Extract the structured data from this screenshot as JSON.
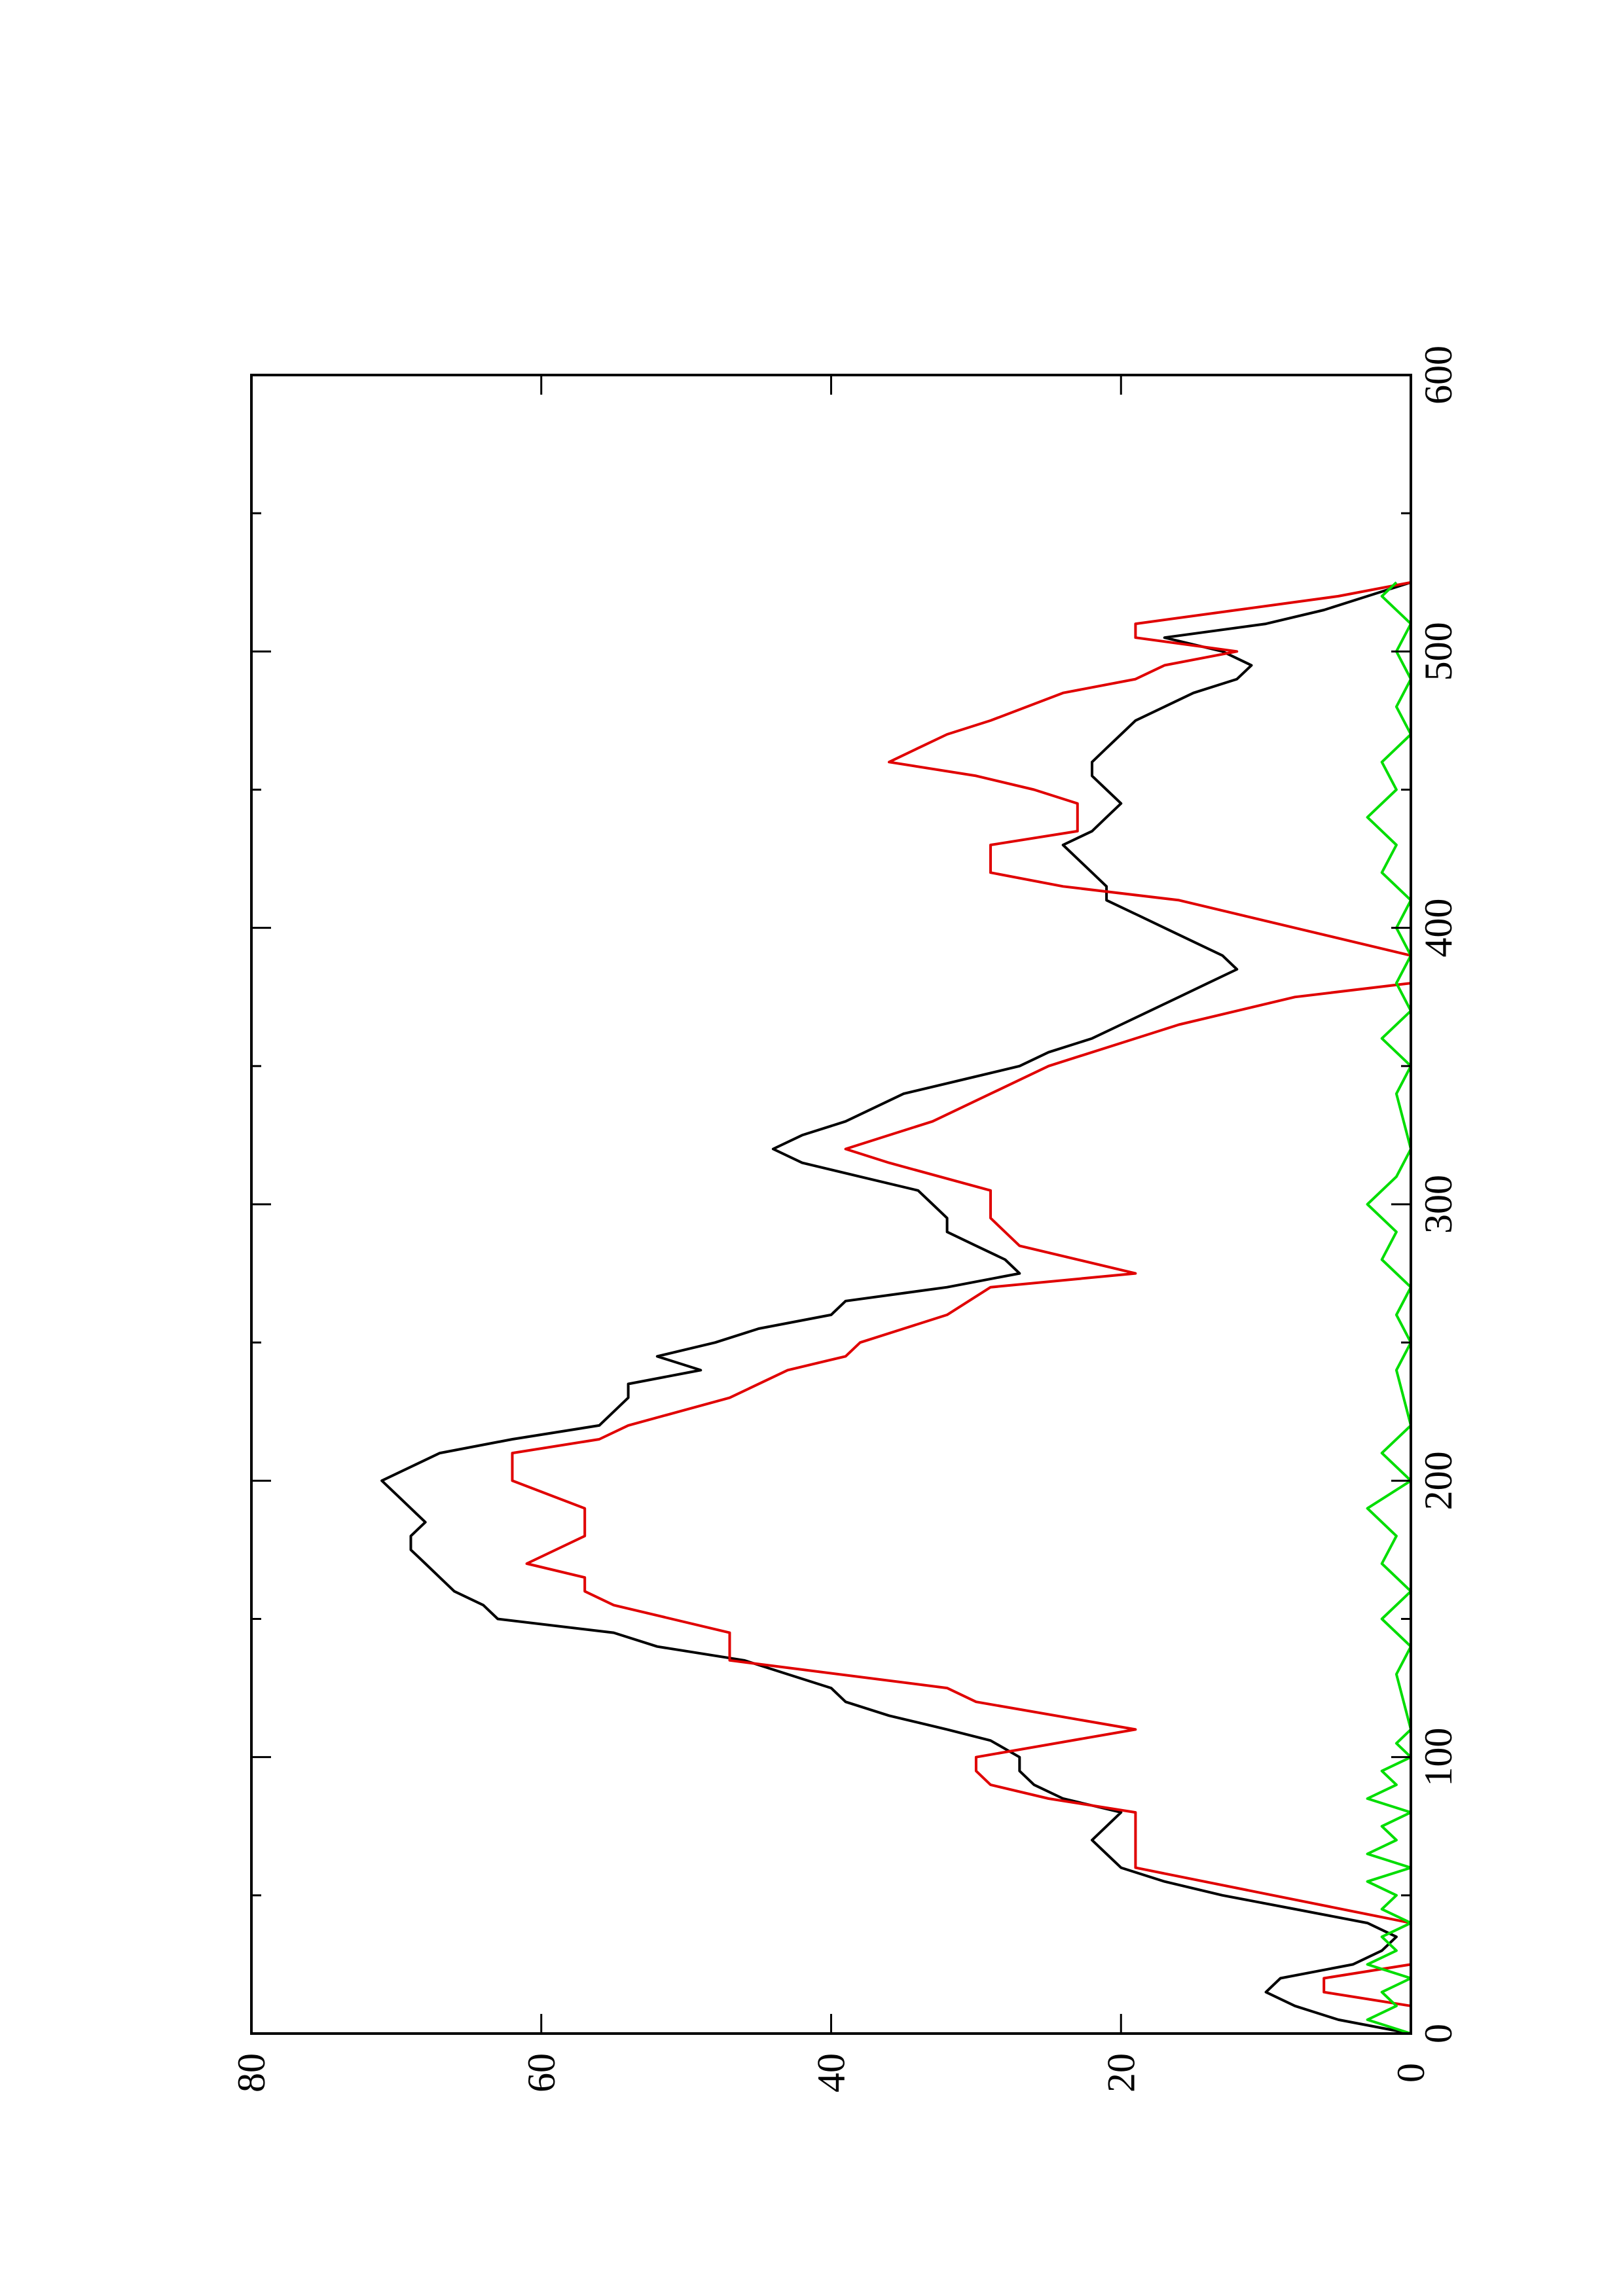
{
  "chart_data": {
    "type": "line",
    "title": "",
    "xlabel": "",
    "ylabel": "",
    "orientation": "rotated 90 degrees counter-clockwise (page is landscape plot printed in portrait)",
    "xlim": [
      0,
      600
    ],
    "ylim": [
      0,
      80
    ],
    "x_ticks": [
      "0",
      "100",
      "200",
      "300",
      "400",
      "500",
      "600"
    ],
    "y_ticks": [
      "0",
      "20",
      "40",
      "60",
      "80"
    ],
    "x_minor_step": 50,
    "grid": false,
    "legend": "none",
    "series": [
      {
        "color": "#000000",
        "points": [
          [
            0,
            0
          ],
          [
            5,
            5
          ],
          [
            10,
            8
          ],
          [
            15,
            10
          ],
          [
            20,
            9
          ],
          [
            25,
            4
          ],
          [
            30,
            2
          ],
          [
            35,
            1
          ],
          [
            40,
            3
          ],
          [
            45,
            8
          ],
          [
            50,
            13
          ],
          [
            55,
            17
          ],
          [
            60,
            20
          ],
          [
            65,
            21
          ],
          [
            70,
            22
          ],
          [
            75,
            21
          ],
          [
            80,
            20
          ],
          [
            85,
            24
          ],
          [
            90,
            26
          ],
          [
            95,
            27
          ],
          [
            100,
            27
          ],
          [
            103,
            28
          ],
          [
            106,
            29
          ],
          [
            110,
            32
          ],
          [
            115,
            36
          ],
          [
            120,
            39
          ],
          [
            125,
            40
          ],
          [
            130,
            43
          ],
          [
            135,
            46
          ],
          [
            140,
            52
          ],
          [
            145,
            55
          ],
          [
            150,
            63
          ],
          [
            155,
            64
          ],
          [
            160,
            66
          ],
          [
            165,
            67
          ],
          [
            170,
            68
          ],
          [
            175,
            69
          ],
          [
            180,
            69
          ],
          [
            185,
            68
          ],
          [
            190,
            69
          ],
          [
            195,
            70
          ],
          [
            200,
            71
          ],
          [
            205,
            69
          ],
          [
            210,
            67
          ],
          [
            215,
            62
          ],
          [
            220,
            56
          ],
          [
            225,
            55
          ],
          [
            230,
            54
          ],
          [
            235,
            54
          ],
          [
            240,
            49
          ],
          [
            245,
            52
          ],
          [
            250,
            48
          ],
          [
            255,
            45
          ],
          [
            260,
            40
          ],
          [
            265,
            39
          ],
          [
            270,
            32
          ],
          [
            275,
            27
          ],
          [
            280,
            28
          ],
          [
            285,
            30
          ],
          [
            290,
            32
          ],
          [
            295,
            32
          ],
          [
            300,
            33
          ],
          [
            305,
            34
          ],
          [
            310,
            38
          ],
          [
            315,
            42
          ],
          [
            320,
            44
          ],
          [
            325,
            42
          ],
          [
            330,
            39
          ],
          [
            335,
            37
          ],
          [
            340,
            35
          ],
          [
            345,
            31
          ],
          [
            350,
            27
          ],
          [
            355,
            25
          ],
          [
            360,
            22
          ],
          [
            365,
            20
          ],
          [
            370,
            18
          ],
          [
            375,
            16
          ],
          [
            380,
            14
          ],
          [
            385,
            12
          ],
          [
            390,
            13
          ],
          [
            395,
            15
          ],
          [
            400,
            17
          ],
          [
            405,
            19
          ],
          [
            410,
            21
          ],
          [
            415,
            21
          ],
          [
            420,
            22
          ],
          [
            425,
            23
          ],
          [
            430,
            24
          ],
          [
            435,
            22
          ],
          [
            440,
            21
          ],
          [
            445,
            20
          ],
          [
            450,
            21
          ],
          [
            455,
            22
          ],
          [
            460,
            22
          ],
          [
            465,
            21
          ],
          [
            470,
            20
          ],
          [
            475,
            19
          ],
          [
            480,
            17
          ],
          [
            485,
            15
          ],
          [
            490,
            12
          ],
          [
            495,
            11
          ],
          [
            500,
            13
          ],
          [
            505,
            17
          ],
          [
            510,
            10
          ],
          [
            515,
            6
          ],
          [
            520,
            3
          ],
          [
            525,
            0
          ]
        ]
      },
      {
        "color": "#e00000",
        "points": [
          [
            0,
            0
          ],
          [
            10,
            0
          ],
          [
            15,
            6
          ],
          [
            20,
            6
          ],
          [
            25,
            0
          ],
          [
            40,
            0
          ],
          [
            60,
            19
          ],
          [
            80,
            19
          ],
          [
            85,
            25
          ],
          [
            90,
            29
          ],
          [
            95,
            30
          ],
          [
            100,
            30
          ],
          [
            110,
            19
          ],
          [
            120,
            30
          ],
          [
            125,
            32
          ],
          [
            135,
            47
          ],
          [
            145,
            47
          ],
          [
            155,
            55
          ],
          [
            160,
            57
          ],
          [
            165,
            57
          ],
          [
            170,
            61
          ],
          [
            180,
            57
          ],
          [
            190,
            57
          ],
          [
            200,
            62
          ],
          [
            210,
            62
          ],
          [
            215,
            56
          ],
          [
            220,
            54
          ],
          [
            230,
            47
          ],
          [
            240,
            43
          ],
          [
            245,
            39
          ],
          [
            250,
            38
          ],
          [
            260,
            32
          ],
          [
            270,
            29
          ],
          [
            275,
            19
          ],
          [
            285,
            27
          ],
          [
            295,
            29
          ],
          [
            305,
            29
          ],
          [
            315,
            36
          ],
          [
            320,
            39
          ],
          [
            325,
            36
          ],
          [
            330,
            33
          ],
          [
            340,
            29
          ],
          [
            350,
            25
          ],
          [
            360,
            19
          ],
          [
            365,
            16
          ],
          [
            370,
            12
          ],
          [
            375,
            8
          ],
          [
            380,
            0
          ],
          [
            390,
            0
          ],
          [
            400,
            8
          ],
          [
            410,
            16
          ],
          [
            415,
            24
          ],
          [
            420,
            29
          ],
          [
            430,
            29
          ],
          [
            435,
            23
          ],
          [
            445,
            23
          ],
          [
            450,
            26
          ],
          [
            455,
            30
          ],
          [
            460,
            36
          ],
          [
            465,
            34
          ],
          [
            470,
            32
          ],
          [
            475,
            29
          ],
          [
            485,
            24
          ],
          [
            490,
            19
          ],
          [
            495,
            17
          ],
          [
            500,
            12
          ],
          [
            505,
            19
          ],
          [
            510,
            19
          ],
          [
            515,
            12
          ],
          [
            520,
            5
          ],
          [
            525,
            0
          ]
        ]
      },
      {
        "color": "#00dd00",
        "points": [
          [
            0,
            0
          ],
          [
            5,
            3
          ],
          [
            10,
            1
          ],
          [
            15,
            2
          ],
          [
            20,
            0
          ],
          [
            25,
            3
          ],
          [
            30,
            1
          ],
          [
            35,
            2
          ],
          [
            40,
            0
          ],
          [
            45,
            2
          ],
          [
            50,
            1
          ],
          [
            55,
            3
          ],
          [
            60,
            0
          ],
          [
            65,
            3
          ],
          [
            70,
            1
          ],
          [
            75,
            2
          ],
          [
            80,
            0
          ],
          [
            85,
            3
          ],
          [
            90,
            1
          ],
          [
            95,
            2
          ],
          [
            100,
            0
          ],
          [
            105,
            1
          ],
          [
            110,
            0
          ],
          [
            130,
            1
          ],
          [
            140,
            0
          ],
          [
            150,
            2
          ],
          [
            160,
            0
          ],
          [
            170,
            2
          ],
          [
            180,
            1
          ],
          [
            190,
            3
          ],
          [
            200,
            0
          ],
          [
            210,
            2
          ],
          [
            220,
            0
          ],
          [
            240,
            1
          ],
          [
            250,
            0
          ],
          [
            260,
            1
          ],
          [
            270,
            0
          ],
          [
            280,
            2
          ],
          [
            290,
            1
          ],
          [
            300,
            3
          ],
          [
            310,
            1
          ],
          [
            320,
            0
          ],
          [
            340,
            1
          ],
          [
            350,
            0
          ],
          [
            360,
            2
          ],
          [
            370,
            0
          ],
          [
            380,
            1
          ],
          [
            390,
            0
          ],
          [
            400,
            1
          ],
          [
            410,
            0
          ],
          [
            420,
            2
          ],
          [
            430,
            1
          ],
          [
            440,
            3
          ],
          [
            450,
            1
          ],
          [
            460,
            2
          ],
          [
            470,
            0
          ],
          [
            480,
            1
          ],
          [
            490,
            0
          ],
          [
            500,
            1
          ],
          [
            510,
            0
          ],
          [
            520,
            2
          ],
          [
            525,
            1
          ]
        ]
      }
    ]
  },
  "colors": {
    "axes": "#000000",
    "background": "#ffffff"
  }
}
